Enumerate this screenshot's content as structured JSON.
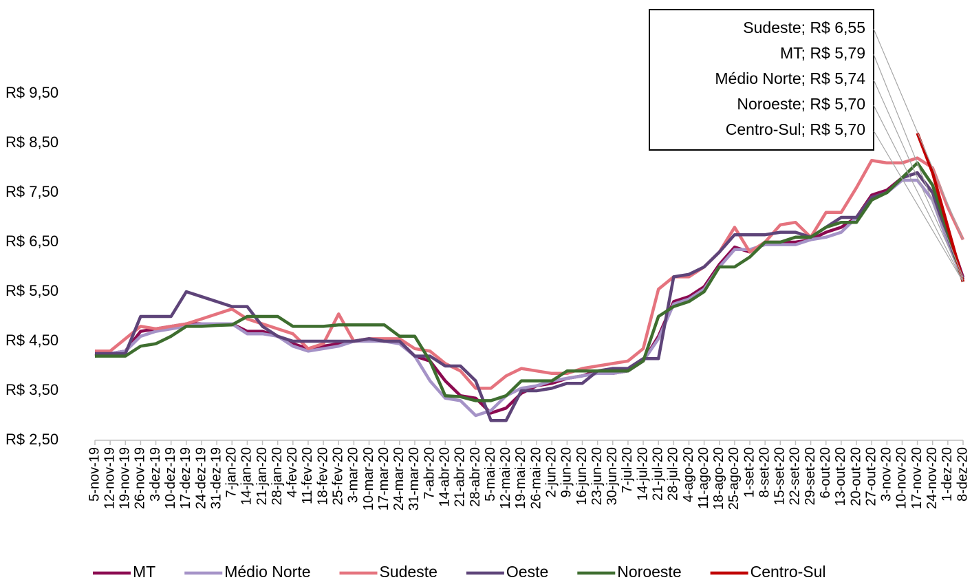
{
  "chart_data": {
    "type": "line",
    "categories": [
      "5-nov-19",
      "12-nov-19",
      "19-nov-19",
      "26-nov-19",
      "3-dez-19",
      "10-dez-19",
      "17-dez-19",
      "24-dez-19",
      "31-dez-19",
      "7-jan-20",
      "14-jan-20",
      "21-jan-20",
      "28-jan-20",
      "4-fev-20",
      "11-fev-20",
      "18-fev-20",
      "25-fev-20",
      "3-mar-20",
      "10-mar-20",
      "17-mar-20",
      "24-mar-20",
      "31-mar-20",
      "7-abr-20",
      "14-abr-20",
      "21-abr-20",
      "28-abr-20",
      "5-mai-20",
      "12-mai-20",
      "19-mai-20",
      "26-mai-20",
      "2-jun-20",
      "9-jun-20",
      "16-jun-20",
      "23-jun-20",
      "30-jun-20",
      "7-jul-20",
      "14-jul-20",
      "21-jul-20",
      "28-jul-20",
      "4-ago-20",
      "11-ago-20",
      "18-ago-20",
      "25-ago-20",
      "1-set-20",
      "8-set-20",
      "15-set-20",
      "22-set-20",
      "29-set-20",
      "6-out-20",
      "13-out-20",
      "20-out-20",
      "27-out-20",
      "3-nov-20",
      "10-nov-20",
      "17-nov-20",
      "24-nov-20",
      "1-dez-20",
      "8-dez-20"
    ],
    "series": [
      {
        "name": "MT",
        "color": "#8b0a50",
        "values": [
          4.2,
          4.25,
          4.3,
          4.7,
          4.75,
          4.8,
          4.85,
          4.85,
          4.85,
          4.85,
          4.7,
          4.7,
          4.6,
          4.45,
          4.35,
          4.4,
          4.45,
          4.5,
          4.55,
          4.5,
          4.5,
          4.2,
          4.1,
          3.7,
          3.4,
          3.35,
          3.05,
          3.15,
          3.45,
          3.6,
          3.65,
          3.75,
          3.8,
          3.9,
          3.85,
          3.9,
          4.1,
          4.6,
          5.3,
          5.4,
          5.6,
          6.05,
          6.4,
          6.3,
          6.5,
          6.5,
          6.5,
          6.55,
          6.7,
          6.8,
          7.0,
          7.45,
          7.55,
          7.8,
          7.9,
          7.5,
          6.7,
          5.79
        ],
        "value_labels": [
          null,
          null,
          null,
          null,
          null,
          null,
          null,
          null,
          null,
          null,
          null,
          null,
          null,
          null,
          null,
          null,
          null,
          null,
          null,
          null,
          null,
          null,
          null,
          null,
          null,
          null,
          null,
          null,
          null,
          null,
          null,
          null,
          null,
          null,
          null,
          null,
          null,
          null,
          null,
          null,
          null,
          null,
          null,
          null,
          null,
          null,
          null,
          null,
          null,
          null,
          null,
          null,
          null,
          null,
          null,
          null,
          null,
          "MT; R$ 5,79"
        ]
      },
      {
        "name": "Médio Norte",
        "color": "#a593c7",
        "values": [
          4.25,
          4.25,
          4.3,
          4.6,
          4.7,
          4.75,
          4.8,
          4.85,
          4.85,
          4.85,
          4.65,
          4.65,
          4.6,
          4.4,
          4.3,
          4.35,
          4.4,
          4.5,
          4.5,
          4.5,
          4.45,
          4.2,
          3.7,
          3.35,
          3.3,
          3.0,
          3.1,
          3.4,
          3.55,
          3.6,
          3.7,
          3.75,
          3.8,
          3.85,
          3.85,
          3.9,
          4.1,
          4.55,
          5.25,
          5.35,
          5.55,
          6.0,
          6.35,
          6.35,
          6.45,
          6.45,
          6.45,
          6.55,
          6.6,
          6.7,
          7.0,
          7.4,
          7.5,
          7.75,
          7.75,
          7.35,
          6.5,
          5.74
        ],
        "value_labels": [
          null,
          null,
          null,
          null,
          null,
          null,
          null,
          null,
          null,
          null,
          null,
          null,
          null,
          null,
          null,
          null,
          null,
          null,
          null,
          null,
          null,
          null,
          null,
          null,
          null,
          null,
          null,
          null,
          null,
          null,
          null,
          null,
          null,
          null,
          null,
          null,
          null,
          null,
          null,
          null,
          null,
          null,
          null,
          null,
          null,
          null,
          null,
          null,
          null,
          null,
          null,
          null,
          null,
          null,
          null,
          null,
          null,
          "Médio Norte; R$ 5,74"
        ]
      },
      {
        "name": "Sudeste",
        "color": "#e5737e",
        "values": [
          4.3,
          4.3,
          4.55,
          4.8,
          4.75,
          4.8,
          4.85,
          4.95,
          5.05,
          5.15,
          4.95,
          4.85,
          4.75,
          4.65,
          4.35,
          4.45,
          5.05,
          4.5,
          4.55,
          4.55,
          4.55,
          4.35,
          4.3,
          4.05,
          3.9,
          3.55,
          3.55,
          3.8,
          3.95,
          3.9,
          3.85,
          3.85,
          3.95,
          4.0,
          4.05,
          4.1,
          4.35,
          5.55,
          5.8,
          5.8,
          6.0,
          6.3,
          6.8,
          6.3,
          6.5,
          6.85,
          6.9,
          6.6,
          7.1,
          7.1,
          7.6,
          8.15,
          8.1,
          8.1,
          8.2,
          8.0,
          7.2,
          6.55
        ],
        "value_labels": [
          null,
          null,
          null,
          null,
          null,
          null,
          null,
          null,
          null,
          null,
          null,
          null,
          null,
          null,
          null,
          null,
          null,
          null,
          null,
          null,
          null,
          null,
          null,
          null,
          null,
          null,
          null,
          null,
          null,
          null,
          null,
          null,
          null,
          null,
          null,
          null,
          null,
          null,
          null,
          null,
          null,
          null,
          null,
          null,
          null,
          null,
          null,
          null,
          null,
          null,
          null,
          null,
          null,
          null,
          null,
          null,
          null,
          "Sudeste; R$ 6,55"
        ]
      },
      {
        "name": "Oeste",
        "color": "#5e4479",
        "values": [
          4.25,
          4.25,
          4.25,
          5.0,
          5.0,
          5.0,
          5.5,
          5.4,
          5.3,
          5.2,
          5.2,
          4.8,
          4.6,
          4.5,
          4.5,
          4.5,
          4.5,
          4.5,
          4.55,
          4.5,
          4.5,
          4.2,
          4.2,
          4.0,
          4.0,
          3.7,
          2.9,
          2.9,
          3.5,
          3.5,
          3.55,
          3.65,
          3.65,
          3.9,
          3.95,
          3.95,
          4.15,
          4.15,
          5.8,
          5.85,
          6.0,
          6.3,
          6.65,
          6.65,
          6.65,
          6.7,
          6.7,
          6.6,
          6.8,
          7.0,
          7.0,
          7.4,
          7.5,
          7.8,
          7.9,
          7.5,
          6.6,
          5.75
        ]
      },
      {
        "name": "Noroeste",
        "color": "#3e6e2f",
        "values": [
          4.2,
          4.2,
          4.2,
          4.4,
          4.45,
          4.6,
          4.8,
          4.8,
          4.82,
          4.83,
          5.0,
          5.0,
          5.0,
          4.8,
          4.8,
          4.8,
          4.83,
          4.83,
          4.83,
          4.83,
          4.6,
          4.6,
          4.1,
          3.4,
          3.38,
          3.3,
          3.3,
          3.4,
          3.7,
          3.7,
          3.7,
          3.9,
          3.9,
          3.9,
          3.9,
          3.9,
          4.1,
          5.0,
          5.2,
          5.3,
          5.5,
          6.0,
          6.0,
          6.2,
          6.5,
          6.5,
          6.6,
          6.6,
          6.8,
          6.9,
          6.9,
          7.35,
          7.5,
          7.8,
          8.1,
          7.65,
          6.7,
          5.7
        ],
        "value_labels": [
          null,
          null,
          null,
          null,
          null,
          null,
          null,
          null,
          null,
          null,
          null,
          null,
          null,
          null,
          null,
          null,
          null,
          null,
          null,
          null,
          null,
          null,
          null,
          null,
          null,
          null,
          null,
          null,
          null,
          null,
          null,
          null,
          null,
          null,
          null,
          null,
          null,
          null,
          null,
          null,
          null,
          null,
          null,
          null,
          null,
          null,
          null,
          null,
          null,
          null,
          null,
          null,
          null,
          null,
          null,
          null,
          null,
          "Noroeste; R$ 5,70"
        ]
      },
      {
        "name": "Centro-Sul",
        "color": "#c00000",
        "values": [
          null,
          null,
          null,
          null,
          null,
          null,
          null,
          null,
          null,
          null,
          null,
          null,
          null,
          null,
          null,
          null,
          null,
          null,
          null,
          null,
          null,
          null,
          null,
          null,
          null,
          null,
          null,
          null,
          null,
          null,
          null,
          null,
          null,
          null,
          null,
          null,
          null,
          null,
          null,
          null,
          null,
          null,
          null,
          null,
          null,
          null,
          null,
          null,
          null,
          null,
          null,
          null,
          null,
          null,
          8.7,
          7.9,
          6.8,
          5.7
        ],
        "value_labels": [
          null,
          null,
          null,
          null,
          null,
          null,
          null,
          null,
          null,
          null,
          null,
          null,
          null,
          null,
          null,
          null,
          null,
          null,
          null,
          null,
          null,
          null,
          null,
          null,
          null,
          null,
          null,
          null,
          null,
          null,
          null,
          null,
          null,
          null,
          null,
          null,
          null,
          null,
          null,
          null,
          null,
          null,
          null,
          null,
          null,
          null,
          null,
          null,
          null,
          null,
          null,
          null,
          null,
          null,
          null,
          null,
          null,
          "Centro-Sul; R$ 5,70"
        ]
      }
    ],
    "ylim": [
      2.5,
      10.5
    ],
    "yticks": [
      {
        "value": 2.5,
        "label": "R$ 2,50"
      },
      {
        "value": 3.5,
        "label": "R$ 3,50"
      },
      {
        "value": 4.5,
        "label": "R$ 4,50"
      },
      {
        "value": 5.5,
        "label": "R$ 5,50"
      },
      {
        "value": 6.5,
        "label": "R$ 6,50"
      },
      {
        "value": 7.5,
        "label": "R$ 7,50"
      },
      {
        "value": 8.5,
        "label": "R$ 8,50"
      },
      {
        "value": 9.5,
        "label": "R$ 9,50"
      }
    ],
    "grid": false,
    "legend": "bottom"
  }
}
